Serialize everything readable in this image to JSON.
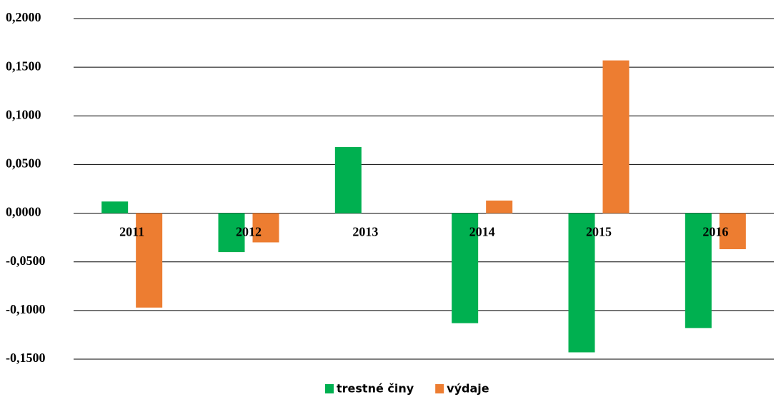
{
  "chart_data": {
    "type": "bar",
    "categories": [
      "2011",
      "2012",
      "2013",
      "2014",
      "2015",
      "2016"
    ],
    "series": [
      {
        "name": "trestné činy",
        "color": "#00b050",
        "values": [
          0.012,
          -0.04,
          0.068,
          -0.113,
          -0.143,
          -0.118
        ]
      },
      {
        "name": "výdaje",
        "color": "#ed7d31",
        "values": [
          -0.097,
          -0.03,
          0,
          0.013,
          0.157,
          -0.037
        ]
      }
    ],
    "ylim": [
      -0.15,
      0.2
    ],
    "yticks": [
      {
        "value": -0.15,
        "label": "-0,1500"
      },
      {
        "value": -0.1,
        "label": "-0,1000"
      },
      {
        "value": -0.05,
        "label": "-0,0500"
      },
      {
        "value": 0,
        "label": "0,0000"
      },
      {
        "value": 0.05,
        "label": "0,0500"
      },
      {
        "value": 0.1,
        "label": "0,1000"
      },
      {
        "value": 0.15,
        "label": "0,1500"
      },
      {
        "value": 0.2,
        "label": "0,2000"
      }
    ],
    "grid": true,
    "legend": "bottom"
  }
}
